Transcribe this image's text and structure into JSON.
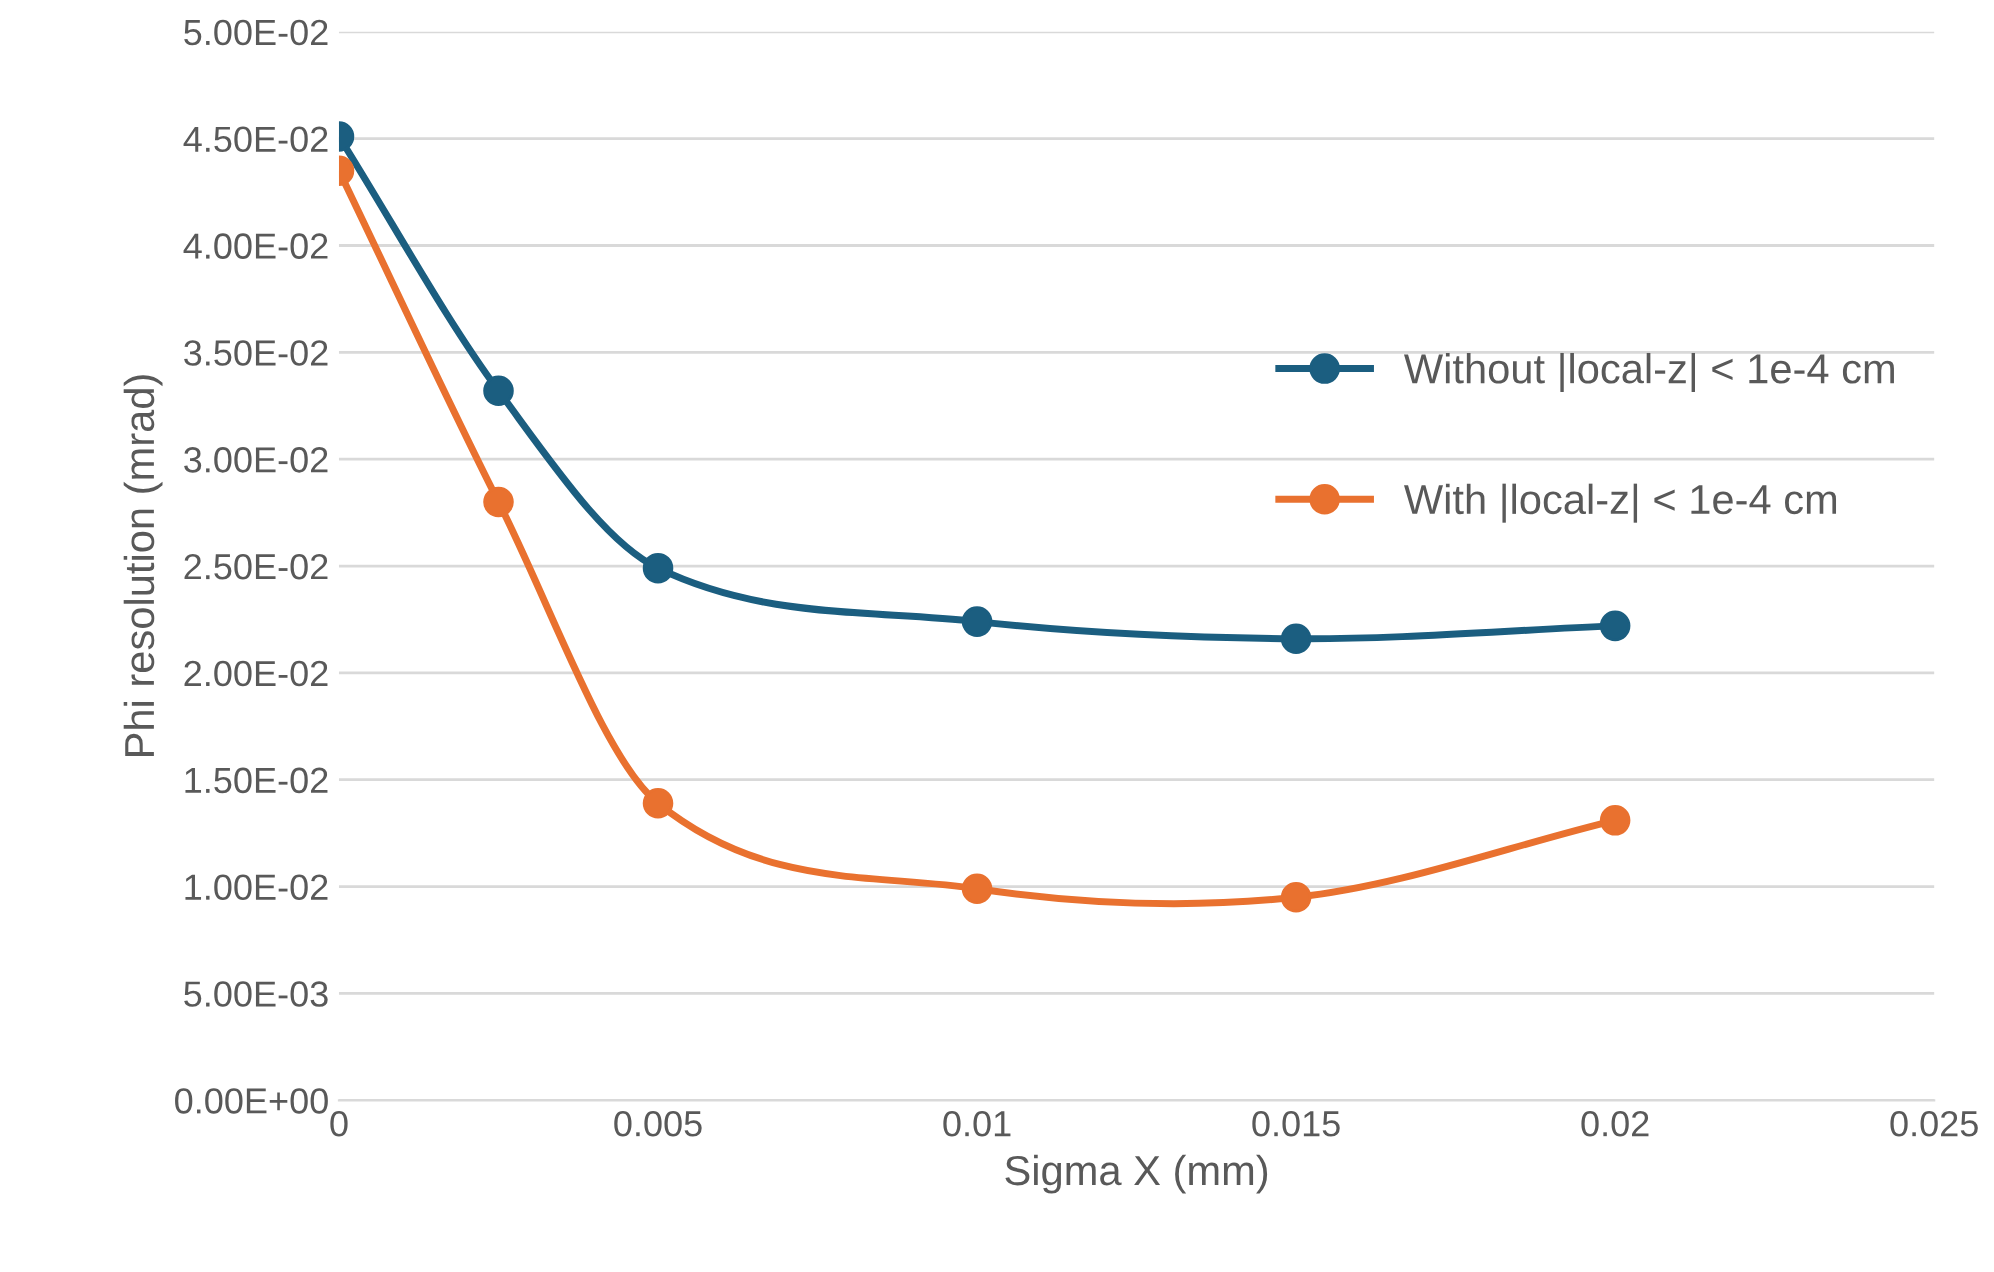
{
  "chart_data": {
    "type": "line",
    "xlabel": "Sigma X (mm)",
    "ylabel": "Phi resolution (mrad)",
    "x": [
      0,
      0.0025,
      0.005,
      0.01,
      0.015,
      0.02
    ],
    "series": [
      {
        "name": "Without |local-z| < 1e-4 cm",
        "color": "#1b5e80",
        "values": [
          0.0451,
          0.0332,
          0.0249,
          0.0224,
          0.0216,
          0.0222
        ]
      },
      {
        "name": "With |local-z| < 1e-4 cm",
        "color": "#e9712f",
        "values": [
          0.0435,
          0.028,
          0.0139,
          0.0099,
          0.0095,
          0.0131
        ]
      }
    ],
    "xlim": [
      0,
      0.025
    ],
    "xticks": [
      0,
      0.005,
      0.01,
      0.015,
      0.02,
      0.025
    ],
    "ylim": [
      0,
      0.05
    ],
    "yticks": [
      {
        "value": 0,
        "label": "0.00E+00"
      },
      {
        "value": 0.005,
        "label": "5.00E-03"
      },
      {
        "value": 0.01,
        "label": "1.00E-02"
      },
      {
        "value": 0.015,
        "label": "1.50E-02"
      },
      {
        "value": 0.02,
        "label": "2.00E-02"
      },
      {
        "value": 0.025,
        "label": "2.50E-02"
      },
      {
        "value": 0.03,
        "label": "3.00E-02"
      },
      {
        "value": 0.035,
        "label": "3.50E-02"
      },
      {
        "value": 0.04,
        "label": "4.00E-02"
      },
      {
        "value": 0.045,
        "label": "4.50E-02"
      },
      {
        "value": 0.05,
        "label": "5.00E-02"
      }
    ],
    "grid": "y",
    "legend": "right",
    "marker": "circle",
    "line_style": "solid"
  }
}
